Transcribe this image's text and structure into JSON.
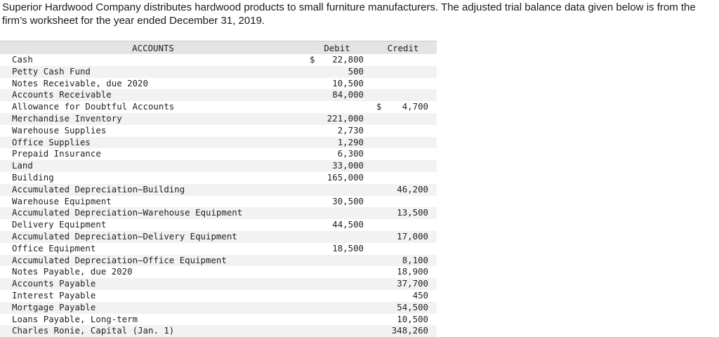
{
  "intro": "Superior Hardwood Company distributes hardwood products to small furniture manufacturers. The adjusted trial balance data given below is from the firm’s worksheet for the year ended December 31, 2019.",
  "table": {
    "headers": {
      "accounts": "ACCOUNTS",
      "debit": "Debit",
      "credit": "Credit"
    },
    "rows": [
      {
        "account": "Cash",
        "debit_sign": "$",
        "debit": "22,800",
        "credit_sign": "",
        "credit": ""
      },
      {
        "account": "Petty Cash Fund",
        "debit_sign": "",
        "debit": "500",
        "credit_sign": "",
        "credit": ""
      },
      {
        "account": "Notes Receivable, due 2020",
        "debit_sign": "",
        "debit": "10,500",
        "credit_sign": "",
        "credit": ""
      },
      {
        "account": "Accounts Receivable",
        "debit_sign": "",
        "debit": "84,000",
        "credit_sign": "",
        "credit": ""
      },
      {
        "account": "Allowance for Doubtful Accounts",
        "debit_sign": "",
        "debit": "",
        "credit_sign": "$",
        "credit": "4,700"
      },
      {
        "account": "Merchandise Inventory",
        "debit_sign": "",
        "debit": "221,000",
        "credit_sign": "",
        "credit": ""
      },
      {
        "account": "Warehouse Supplies",
        "debit_sign": "",
        "debit": "2,730",
        "credit_sign": "",
        "credit": ""
      },
      {
        "account": "Office Supplies",
        "debit_sign": "",
        "debit": "1,290",
        "credit_sign": "",
        "credit": ""
      },
      {
        "account": "Prepaid Insurance",
        "debit_sign": "",
        "debit": "6,300",
        "credit_sign": "",
        "credit": ""
      },
      {
        "account": "Land",
        "debit_sign": "",
        "debit": "33,000",
        "credit_sign": "",
        "credit": ""
      },
      {
        "account": "Building",
        "debit_sign": "",
        "debit": "165,000",
        "credit_sign": "",
        "credit": ""
      },
      {
        "account": "Accumulated Depreciation—Building",
        "debit_sign": "",
        "debit": "",
        "credit_sign": "",
        "credit": "46,200"
      },
      {
        "account": "Warehouse Equipment",
        "debit_sign": "",
        "debit": "30,500",
        "credit_sign": "",
        "credit": ""
      },
      {
        "account": "Accumulated Depreciation—Warehouse Equipment",
        "debit_sign": "",
        "debit": "",
        "credit_sign": "",
        "credit": "13,500"
      },
      {
        "account": "Delivery Equipment",
        "debit_sign": "",
        "debit": "44,500",
        "credit_sign": "",
        "credit": ""
      },
      {
        "account": "Accumulated Depreciation—Delivery Equipment",
        "debit_sign": "",
        "debit": "",
        "credit_sign": "",
        "credit": "17,000"
      },
      {
        "account": "Office Equipment",
        "debit_sign": "",
        "debit": "18,500",
        "credit_sign": "",
        "credit": ""
      },
      {
        "account": "Accumulated Depreciation—Office Equipment",
        "debit_sign": "",
        "debit": "",
        "credit_sign": "",
        "credit": "8,100"
      },
      {
        "account": "Notes Payable, due 2020",
        "debit_sign": "",
        "debit": "",
        "credit_sign": "",
        "credit": "18,900"
      },
      {
        "account": "Accounts Payable",
        "debit_sign": "",
        "debit": "",
        "credit_sign": "",
        "credit": "37,700"
      },
      {
        "account": "Interest Payable",
        "debit_sign": "",
        "debit": "",
        "credit_sign": "",
        "credit": "450"
      },
      {
        "account": "Mortgage Payable",
        "debit_sign": "",
        "debit": "",
        "credit_sign": "",
        "credit": "54,500"
      },
      {
        "account": "Loans Payable, Long-term",
        "debit_sign": "",
        "debit": "",
        "credit_sign": "",
        "credit": "10,500"
      },
      {
        "account": "Charles Ronie, Capital (Jan. 1)",
        "debit_sign": "",
        "debit": "",
        "credit_sign": "",
        "credit": "348,260"
      }
    ]
  }
}
